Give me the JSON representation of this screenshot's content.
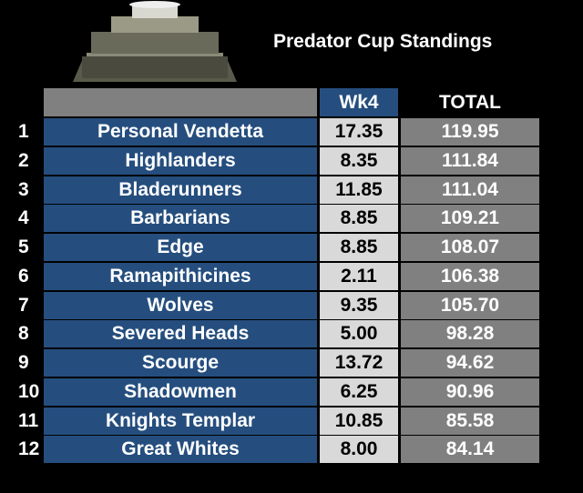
{
  "header": {
    "title": "Predator Cup Standings"
  },
  "table": {
    "columns": [
      "Wk4",
      "TOTAL"
    ],
    "rows": [
      [
        "1",
        "Personal Vendetta",
        "17.35",
        "119.95"
      ],
      [
        "2",
        "Highlanders",
        "8.35",
        "111.84"
      ],
      [
        "3",
        "Bladerunners",
        "11.85",
        "111.04"
      ],
      [
        "4",
        "Barbarians",
        "8.85",
        "109.21"
      ],
      [
        "5",
        "Edge",
        "8.85",
        "108.07"
      ],
      [
        "6",
        "Ramapithicines",
        "2.11",
        "106.38"
      ],
      [
        "7",
        "Wolves",
        "9.35",
        "105.70"
      ],
      [
        "8",
        "Severed Heads",
        "5.00",
        "98.28"
      ],
      [
        "9",
        "Scourge",
        "13.72",
        "94.62"
      ],
      [
        "10",
        "Shadowmen",
        "6.25",
        "90.96"
      ],
      [
        "11",
        "Knights Templar",
        "10.85",
        "85.58"
      ],
      [
        "12",
        "Great Whites",
        "8.00",
        "84.14"
      ]
    ]
  }
}
